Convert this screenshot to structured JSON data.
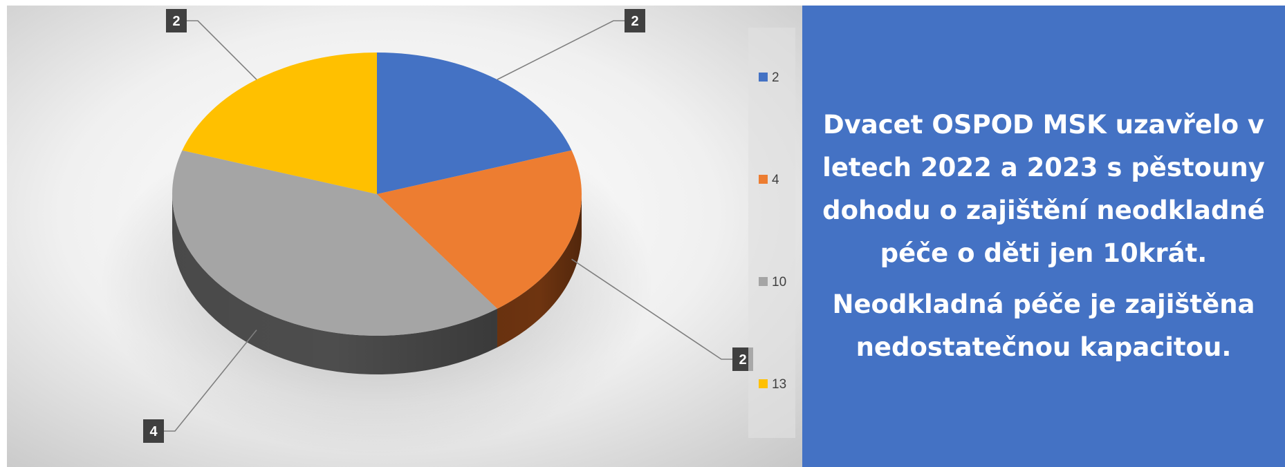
{
  "chart_data": {
    "type": "pie",
    "title": "",
    "slices": [
      {
        "legend": "2",
        "label": "2",
        "value": 2,
        "color": "#4472c4",
        "side": "#2c4a80"
      },
      {
        "legend": "4",
        "label": "2",
        "value": 2,
        "color": "#ed7d31",
        "side": "#6e3410"
      },
      {
        "legend": "10",
        "label": "4",
        "value": 4,
        "color": "#a5a5a5",
        "side": "#4d4d4d"
      },
      {
        "legend": "13",
        "label": "2",
        "value": 2,
        "color": "#ffc000",
        "side": "#8a6800"
      }
    ],
    "legend_position": "right",
    "three_d": true
  },
  "message": {
    "line1": "Dvacet OSPOD MSK uzavřelo v letech 2022 a 2023 s pěstouny dohodu o zajištění neodkladné péče o děti jen 10krát.",
    "line2": "Neodkladná péče je zajištěna nedostatečnou kapacitou."
  }
}
